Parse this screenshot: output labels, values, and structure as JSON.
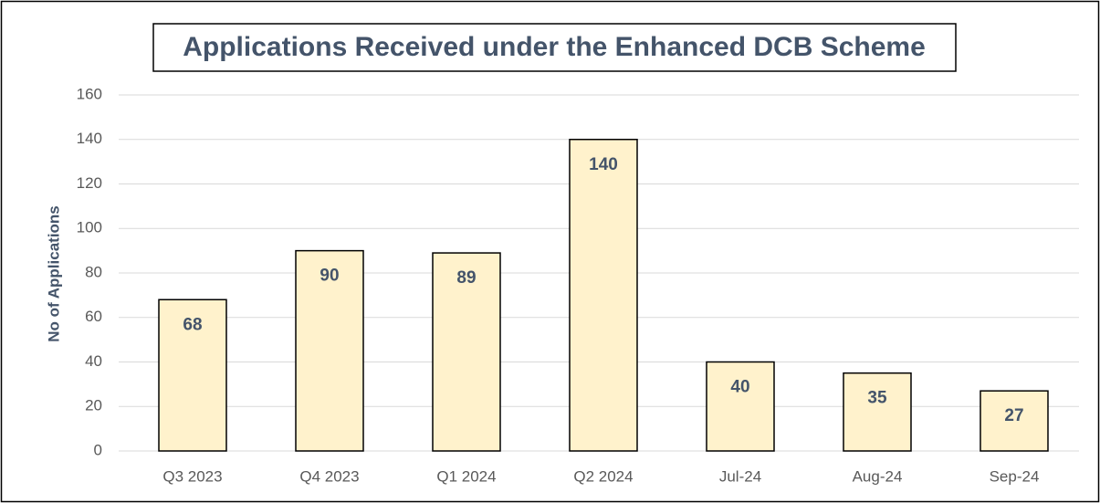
{
  "chart_data": {
    "type": "bar",
    "title": "Applications Received under the Enhanced DCB Scheme",
    "y_label": "No of Applications",
    "categories": [
      "Q3 2023",
      "Q4 2023",
      "Q1 2024",
      "Q2 2024",
      "Jul-24",
      "Aug-24",
      "Sep-24"
    ],
    "values": [
      68,
      90,
      89,
      140,
      40,
      35,
      27
    ],
    "color": "#fff2cc",
    "ylim": [
      0,
      160
    ],
    "yticks": [
      0,
      20,
      40,
      60,
      80,
      100,
      120,
      140,
      160
    ],
    "grid": true
  }
}
